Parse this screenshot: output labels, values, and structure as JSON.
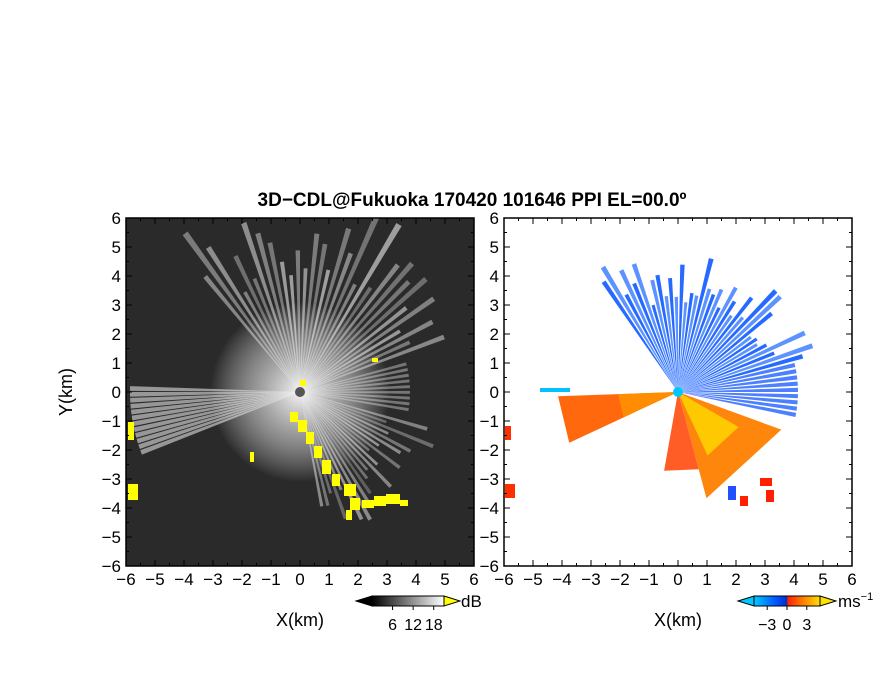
{
  "title": "3D−CDL@Fukuoka 170420 101646 PPI EL=00.0º",
  "chart_data": [
    {
      "type": "heatmap",
      "panel": "left",
      "quantity": "SNR",
      "xlabel": "X(km)",
      "ylabel": "Y(km)",
      "xlim": [
        -6,
        6
      ],
      "ylim": [
        -6,
        6
      ],
      "x_ticks": [
        "−6",
        "−5",
        "−4",
        "−3",
        "−2",
        "−1",
        "0",
        "1",
        "2",
        "3",
        "4",
        "5",
        "6"
      ],
      "y_ticks": [
        "6",
        "5",
        "4",
        "3",
        "2",
        "1",
        "0",
        "−1",
        "−2",
        "−3",
        "−4",
        "−5",
        "−6"
      ],
      "colorbar": {
        "unit": "dB",
        "tick_labels": [
          "6",
          "12",
          "18"
        ],
        "range": [
          0,
          21
        ],
        "colors": [
          "#000000",
          "#ffffff"
        ],
        "overflow_color": "#ffff00"
      },
      "background_color": "#2a2a2a",
      "grid": false
    },
    {
      "type": "heatmap",
      "panel": "right",
      "quantity": "radial velocity",
      "xlabel": "X(km)",
      "ylabel": "Y(km)",
      "xlim": [
        -6,
        6
      ],
      "ylim": [
        -6,
        6
      ],
      "x_ticks": [
        "−6",
        "−5",
        "−4",
        "−3",
        "−2",
        "−1",
        "0",
        "1",
        "2",
        "3",
        "4",
        "5",
        "6"
      ],
      "y_ticks": [
        "6",
        "5",
        "4",
        "3",
        "2",
        "1",
        "0",
        "−1",
        "−2",
        "−3",
        "−4",
        "−5",
        "−6"
      ],
      "colorbar": {
        "unit": "ms",
        "unit_exponent": "−1",
        "tick_labels": [
          "−3",
          "0",
          "3"
        ],
        "range": [
          -5,
          5
        ],
        "colors": [
          "#00c8ff",
          "#0050ff",
          "#ff2000",
          "#ffe000"
        ]
      },
      "background_color": "#ffffff",
      "grid": false
    }
  ]
}
